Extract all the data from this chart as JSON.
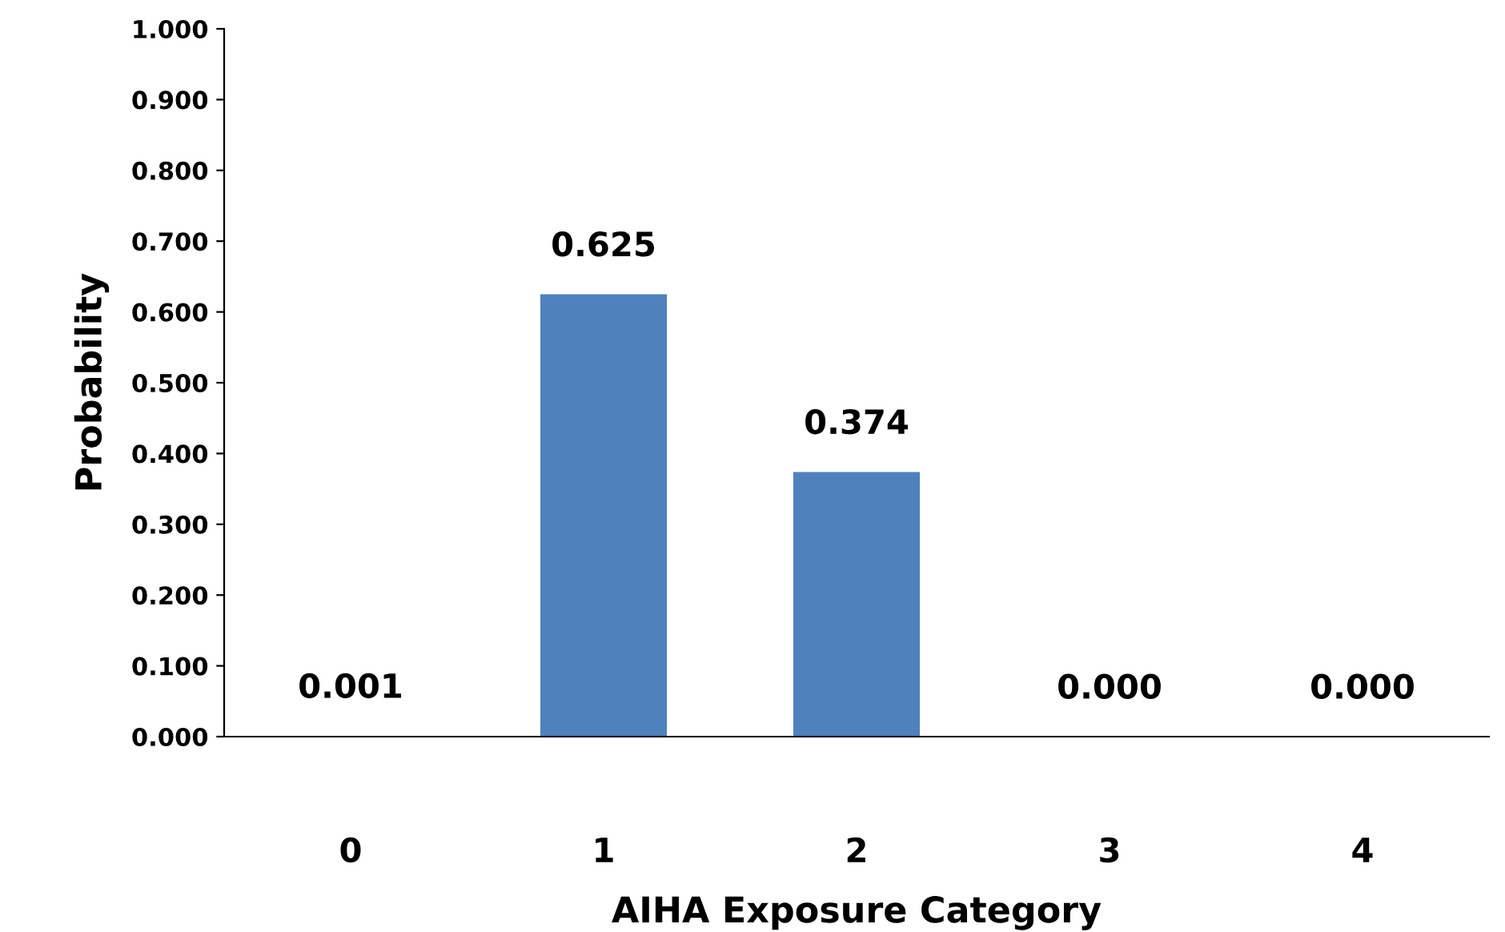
{
  "chart_data": {
    "type": "bar",
    "xlabel": "AIHA Exposure Category",
    "ylabel": "Probability",
    "categories": [
      "0",
      "1",
      "2",
      "3",
      "4"
    ],
    "values": [
      0.001,
      0.625,
      0.374,
      0.0,
      0.0
    ],
    "value_labels": [
      "0.001",
      "0.625",
      "0.374",
      "0.000",
      "0.000"
    ],
    "color": "#4f81bd",
    "ylim": [
      0,
      1
    ],
    "yticks": [
      {
        "value": 0,
        "label": "0.000"
      },
      {
        "value": 0.1,
        "label": "0.100"
      },
      {
        "value": 0.2,
        "label": "0.200"
      },
      {
        "value": 0.3,
        "label": "0.300"
      },
      {
        "value": 0.4,
        "label": "0.400"
      },
      {
        "value": 0.5,
        "label": "0.500"
      },
      {
        "value": 0.6,
        "label": "0.600"
      },
      {
        "value": 0.7,
        "label": "0.700"
      },
      {
        "value": 0.8,
        "label": "0.800"
      },
      {
        "value": 0.9,
        "label": "0.900"
      },
      {
        "value": 1,
        "label": "1.000"
      }
    ],
    "grid": false
  }
}
